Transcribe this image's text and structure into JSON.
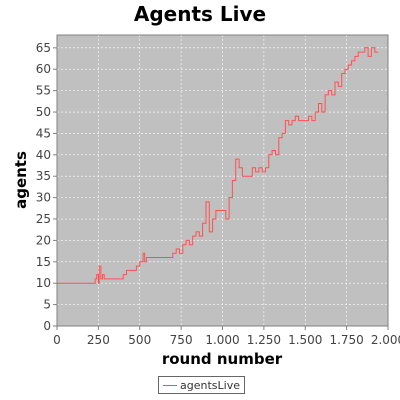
{
  "chart_data": {
    "type": "line",
    "title": "Agents Live",
    "xlabel": "round number",
    "ylabel": "agents",
    "xlim": [
      0,
      2000
    ],
    "ylim": [
      0,
      68
    ],
    "x_ticks": [
      "0",
      "250",
      "500",
      "750",
      "1.000",
      "1.250",
      "1.500",
      "1.750",
      "2.000"
    ],
    "y_ticks": [
      "0",
      "5",
      "10",
      "15",
      "20",
      "25",
      "30",
      "35",
      "40",
      "45",
      "50",
      "55",
      "60",
      "65"
    ],
    "grid": true,
    "legend_position": "bottom",
    "background_color": "#c0c0c0",
    "series": [
      {
        "name": "agentsLive",
        "color": "#ff5050",
        "x": [
          0,
          200,
          230,
          240,
          250,
          255,
          265,
          275,
          285,
          300,
          340,
          380,
          400,
          420,
          460,
          480,
          500,
          520,
          530,
          540,
          560,
          600,
          640,
          680,
          700,
          720,
          740,
          760,
          780,
          800,
          820,
          840,
          860,
          880,
          900,
          920,
          940,
          960,
          980,
          1000,
          1020,
          1040,
          1060,
          1080,
          1100,
          1120,
          1140,
          1160,
          1180,
          1200,
          1220,
          1240,
          1260,
          1280,
          1300,
          1320,
          1340,
          1360,
          1380,
          1400,
          1420,
          1440,
          1460,
          1480,
          1500,
          1520,
          1540,
          1560,
          1580,
          1600,
          1620,
          1640,
          1660,
          1680,
          1700,
          1720,
          1740,
          1760,
          1780,
          1800,
          1820,
          1840,
          1860,
          1880,
          1900,
          1920,
          1940
        ],
        "y": [
          10,
          10,
          11,
          12,
          10,
          14,
          11,
          12,
          11,
          11,
          11,
          11,
          12,
          13,
          13,
          14,
          15,
          17,
          15,
          16,
          16,
          16,
          16,
          16,
          17,
          18,
          17,
          19,
          20,
          19,
          21,
          22,
          21,
          24,
          29,
          22,
          25,
          27,
          27,
          27,
          25,
          30,
          34,
          39,
          37,
          35,
          35,
          35,
          37,
          36,
          37,
          36,
          37,
          40,
          41,
          40,
          44,
          45,
          48,
          47,
          48,
          49,
          48,
          48,
          48,
          49,
          48,
          50,
          52,
          50,
          54,
          55,
          54,
          57,
          56,
          59,
          60,
          61,
          62,
          63,
          64,
          64,
          65,
          63,
          65,
          64,
          64
        ]
      }
    ]
  }
}
